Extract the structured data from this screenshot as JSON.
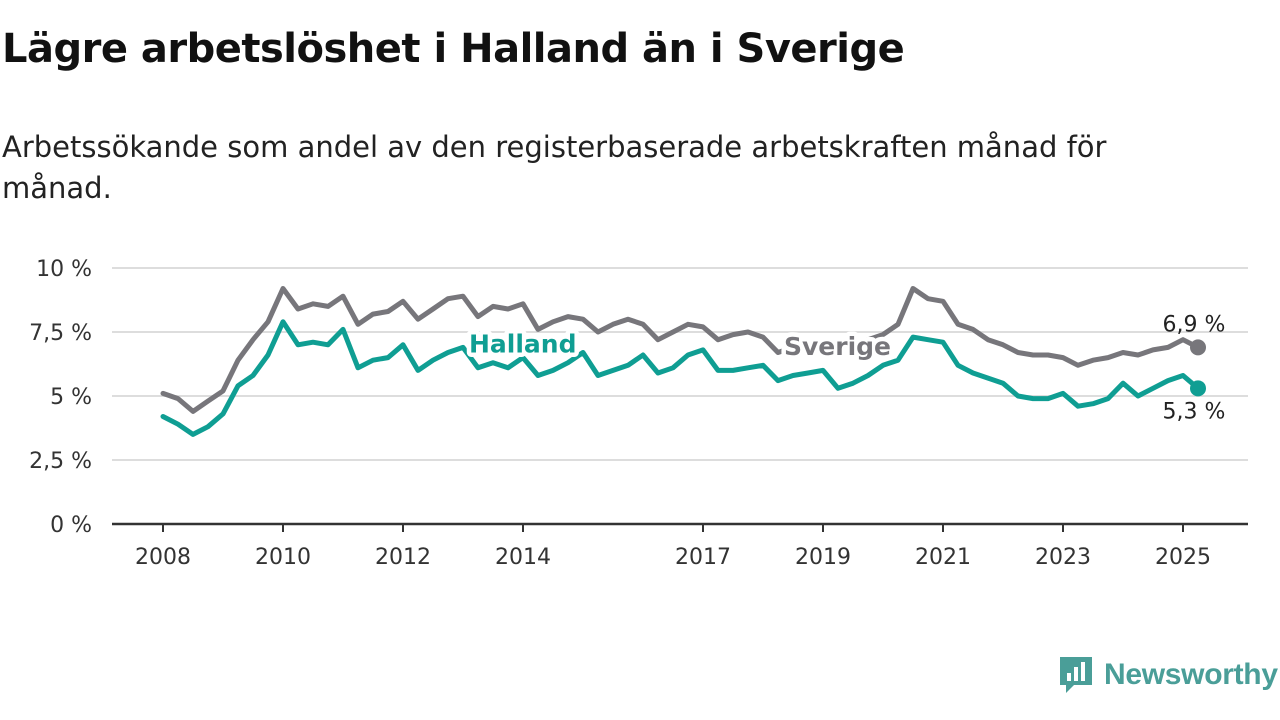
{
  "title": "Lägre arbetslöshet i Halland än i Sverige",
  "subtitle": "Arbetssökande som andel av den registerbaserade arbetskraften månad för månad.",
  "brand": {
    "name": "Newsworthy",
    "color": "#4a9e98",
    "icon": "newsworthy-logo-icon"
  },
  "colors": {
    "sverige": "#77767b",
    "halland": "#0f9e93",
    "grid": "#dddddd",
    "axis": "#333333"
  },
  "chart_data": {
    "type": "line",
    "title": "Lägre arbetslöshet i Halland än i Sverige",
    "xlabel": "",
    "ylabel": "",
    "x_ticks": [
      "2008",
      "2010",
      "2012",
      "2014",
      "2017",
      "2019",
      "2021",
      "2023",
      "2025"
    ],
    "x_tick_values": [
      2008,
      2010,
      2012,
      2014,
      2017,
      2019,
      2021,
      2023,
      2025
    ],
    "y_ticks": [
      "0 %",
      "2,5 %",
      "5 %",
      "7,5 %",
      "10 %"
    ],
    "y_tick_values": [
      0,
      2.5,
      5,
      7.5,
      10
    ],
    "ylim": [
      0,
      10
    ],
    "xlim": [
      2008,
      2025.3
    ],
    "grid": true,
    "legend": "inline labels",
    "series": [
      {
        "name": "Sverige",
        "color": "#77767b",
        "end_label": "6,9 %",
        "points": [
          [
            2008.0,
            5.1
          ],
          [
            2008.25,
            4.9
          ],
          [
            2008.5,
            4.4
          ],
          [
            2008.75,
            4.8
          ],
          [
            2009.0,
            5.2
          ],
          [
            2009.25,
            6.4
          ],
          [
            2009.5,
            7.2
          ],
          [
            2009.75,
            7.9
          ],
          [
            2010.0,
            9.2
          ],
          [
            2010.25,
            8.4
          ],
          [
            2010.5,
            8.6
          ],
          [
            2010.75,
            8.5
          ],
          [
            2011.0,
            8.9
          ],
          [
            2011.25,
            7.8
          ],
          [
            2011.5,
            8.2
          ],
          [
            2011.75,
            8.3
          ],
          [
            2012.0,
            8.7
          ],
          [
            2012.25,
            8.0
          ],
          [
            2012.5,
            8.4
          ],
          [
            2012.75,
            8.8
          ],
          [
            2013.0,
            8.9
          ],
          [
            2013.25,
            8.1
          ],
          [
            2013.5,
            8.5
          ],
          [
            2013.75,
            8.4
          ],
          [
            2014.0,
            8.6
          ],
          [
            2014.25,
            7.6
          ],
          [
            2014.5,
            7.9
          ],
          [
            2014.75,
            8.1
          ],
          [
            2015.0,
            8.0
          ],
          [
            2015.25,
            7.5
          ],
          [
            2015.5,
            7.8
          ],
          [
            2015.75,
            8.0
          ],
          [
            2016.0,
            7.8
          ],
          [
            2016.25,
            7.2
          ],
          [
            2016.5,
            7.5
          ],
          [
            2016.75,
            7.8
          ],
          [
            2017.0,
            7.7
          ],
          [
            2017.25,
            7.2
          ],
          [
            2017.5,
            7.4
          ],
          [
            2017.75,
            7.5
          ],
          [
            2018.0,
            7.3
          ],
          [
            2018.25,
            6.7
          ],
          [
            2018.5,
            6.9
          ],
          [
            2018.75,
            7.0
          ],
          [
            2019.0,
            7.0
          ],
          [
            2019.25,
            6.8
          ],
          [
            2019.5,
            7.1
          ],
          [
            2019.75,
            7.2
          ],
          [
            2020.0,
            7.4
          ],
          [
            2020.25,
            7.8
          ],
          [
            2020.5,
            9.2
          ],
          [
            2020.75,
            8.8
          ],
          [
            2021.0,
            8.7
          ],
          [
            2021.25,
            7.8
          ],
          [
            2021.5,
            7.6
          ],
          [
            2021.75,
            7.2
          ],
          [
            2022.0,
            7.0
          ],
          [
            2022.25,
            6.7
          ],
          [
            2022.5,
            6.6
          ],
          [
            2022.75,
            6.6
          ],
          [
            2023.0,
            6.5
          ],
          [
            2023.25,
            6.2
          ],
          [
            2023.5,
            6.4
          ],
          [
            2023.75,
            6.5
          ],
          [
            2024.0,
            6.7
          ],
          [
            2024.25,
            6.6
          ],
          [
            2024.5,
            6.8
          ],
          [
            2024.75,
            6.9
          ],
          [
            2025.0,
            7.2
          ],
          [
            2025.25,
            6.9
          ]
        ]
      },
      {
        "name": "Halland",
        "color": "#0f9e93",
        "end_label": "5,3 %",
        "points": [
          [
            2008.0,
            4.2
          ],
          [
            2008.25,
            3.9
          ],
          [
            2008.5,
            3.5
          ],
          [
            2008.75,
            3.8
          ],
          [
            2009.0,
            4.3
          ],
          [
            2009.25,
            5.4
          ],
          [
            2009.5,
            5.8
          ],
          [
            2009.75,
            6.6
          ],
          [
            2010.0,
            7.9
          ],
          [
            2010.25,
            7.0
          ],
          [
            2010.5,
            7.1
          ],
          [
            2010.75,
            7.0
          ],
          [
            2011.0,
            7.6
          ],
          [
            2011.25,
            6.1
          ],
          [
            2011.5,
            6.4
          ],
          [
            2011.75,
            6.5
          ],
          [
            2012.0,
            7.0
          ],
          [
            2012.25,
            6.0
          ],
          [
            2012.5,
            6.4
          ],
          [
            2012.75,
            6.7
          ],
          [
            2013.0,
            6.9
          ],
          [
            2013.25,
            6.1
          ],
          [
            2013.5,
            6.3
          ],
          [
            2013.75,
            6.1
          ],
          [
            2014.0,
            6.5
          ],
          [
            2014.25,
            5.8
          ],
          [
            2014.5,
            6.0
          ],
          [
            2014.75,
            6.3
          ],
          [
            2015.0,
            6.7
          ],
          [
            2015.25,
            5.8
          ],
          [
            2015.5,
            6.0
          ],
          [
            2015.75,
            6.2
          ],
          [
            2016.0,
            6.6
          ],
          [
            2016.25,
            5.9
          ],
          [
            2016.5,
            6.1
          ],
          [
            2016.75,
            6.6
          ],
          [
            2017.0,
            6.8
          ],
          [
            2017.25,
            6.0
          ],
          [
            2017.5,
            6.0
          ],
          [
            2017.75,
            6.1
          ],
          [
            2018.0,
            6.2
          ],
          [
            2018.25,
            5.6
          ],
          [
            2018.5,
            5.8
          ],
          [
            2018.75,
            5.9
          ],
          [
            2019.0,
            6.0
          ],
          [
            2019.25,
            5.3
          ],
          [
            2019.5,
            5.5
          ],
          [
            2019.75,
            5.8
          ],
          [
            2020.0,
            6.2
          ],
          [
            2020.25,
            6.4
          ],
          [
            2020.5,
            7.3
          ],
          [
            2020.75,
            7.2
          ],
          [
            2021.0,
            7.1
          ],
          [
            2021.25,
            6.2
          ],
          [
            2021.5,
            5.9
          ],
          [
            2021.75,
            5.7
          ],
          [
            2022.0,
            5.5
          ],
          [
            2022.25,
            5.0
          ],
          [
            2022.5,
            4.9
          ],
          [
            2022.75,
            4.9
          ],
          [
            2023.0,
            5.1
          ],
          [
            2023.25,
            4.6
          ],
          [
            2023.5,
            4.7
          ],
          [
            2023.75,
            4.9
          ],
          [
            2024.0,
            5.5
          ],
          [
            2024.25,
            5.0
          ],
          [
            2024.5,
            5.3
          ],
          [
            2024.75,
            5.6
          ],
          [
            2025.0,
            5.8
          ],
          [
            2025.25,
            5.3
          ]
        ]
      }
    ]
  }
}
